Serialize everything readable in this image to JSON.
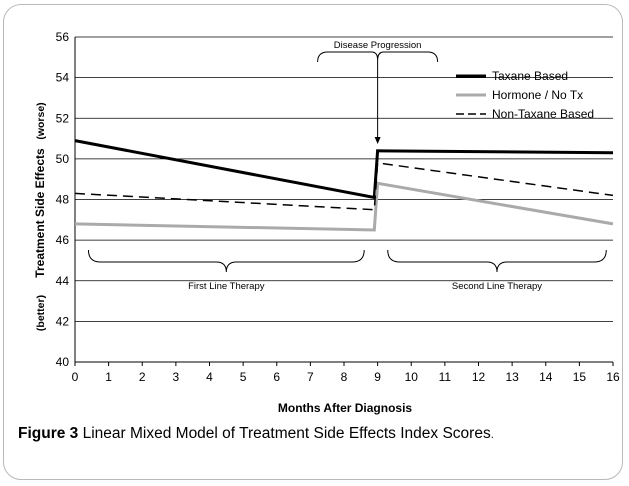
{
  "chart_data": {
    "type": "line",
    "ylabel_main": "Treatment Side Effects",
    "ylabel_worse": "(worse)",
    "ylabel_better": "(better)",
    "xlabel": "Months After Diagnosis",
    "xlim": [
      0,
      16
    ],
    "ylim": [
      40,
      56
    ],
    "x_ticks": [
      0,
      1,
      2,
      3,
      4,
      5,
      6,
      7,
      8,
      9,
      10,
      11,
      12,
      13,
      14,
      15,
      16
    ],
    "y_ticks": [
      40,
      42,
      44,
      46,
      48,
      50,
      52,
      54,
      56
    ],
    "grid": "horizontal",
    "legend_position": "top-right",
    "series": [
      {
        "name": "Taxane Based",
        "color": "#000000",
        "style": "solid",
        "width": 3,
        "points": [
          [
            0,
            50.9
          ],
          [
            8.9,
            48.1
          ],
          [
            8.9,
            48.1
          ],
          [
            9,
            50.4
          ],
          [
            16,
            50.3
          ]
        ]
      },
      {
        "name": "Hormone / No Tx",
        "color": "#aaaaaa",
        "style": "solid",
        "width": 3,
        "points": [
          [
            0,
            46.8
          ],
          [
            8.9,
            46.5
          ],
          [
            9,
            48.8
          ],
          [
            16,
            46.8
          ]
        ]
      },
      {
        "name": "Non-Taxane Based",
        "color": "#000000",
        "style": "dashed",
        "width": 1.5,
        "points": [
          [
            0,
            48.3
          ],
          [
            8.9,
            47.5
          ],
          [
            9,
            49.8
          ],
          [
            16,
            48.2
          ]
        ]
      }
    ],
    "annotations": {
      "disease_progression": {
        "label": "Disease Progression",
        "x": 9,
        "y": 53.0
      },
      "first_line": {
        "label": "First Line Therapy",
        "x_start": 0.4,
        "x_end": 8.6,
        "y": 45.5
      },
      "second_line": {
        "label": "Second Line Therapy",
        "x_start": 9.3,
        "x_end": 15.8,
        "y": 45.5
      }
    }
  },
  "caption": {
    "label": "Figure 3",
    "text": "Linear Mixed Model of Treatment Side Effects Index Scores",
    "end": "."
  }
}
